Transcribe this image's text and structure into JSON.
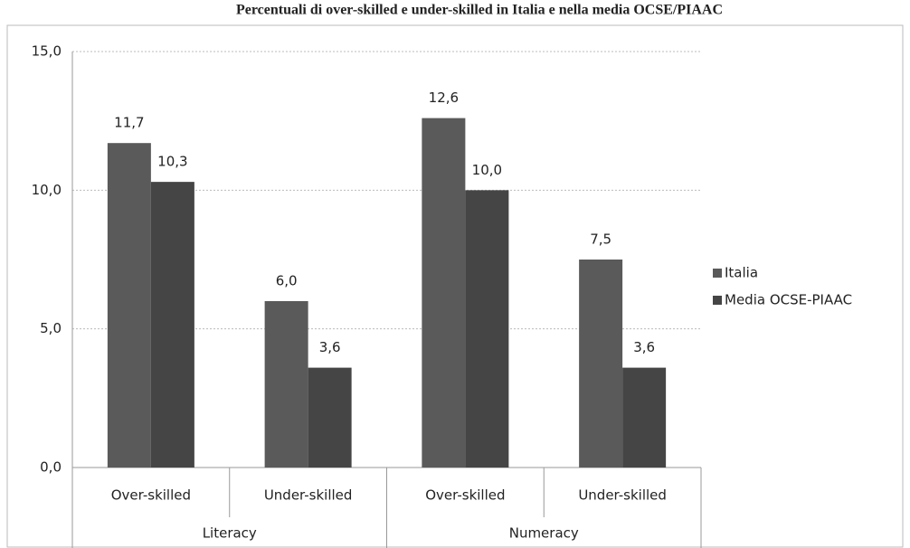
{
  "chart_data": {
    "type": "bar",
    "title": "Percentuali di over-skilled e under-skilled in Italia e nella media OCSE/PIAAC",
    "categories": [
      "Over-skilled",
      "Under-skilled",
      "Over-skilled",
      "Under-skilled"
    ],
    "groups": [
      "Literacy",
      "Numeracy"
    ],
    "series": [
      {
        "name": "Italia",
        "color": "#5a5a5a",
        "values": [
          11.7,
          6.0,
          12.6,
          7.5
        ],
        "value_labels": [
          "11,7",
          "6,0",
          "12,6",
          "7,5"
        ]
      },
      {
        "name": "Media OCSE-PIAAC",
        "color": "#454545",
        "values": [
          10.3,
          3.6,
          10.0,
          3.6
        ],
        "value_labels": [
          "10,3",
          "3,6",
          "10,0",
          "3,6"
        ]
      }
    ],
    "ylim": [
      0,
      15
    ],
    "yticks": [
      {
        "value": 0,
        "label": "0,0"
      },
      {
        "value": 5,
        "label": "5,0"
      },
      {
        "value": 10,
        "label": "10,0"
      },
      {
        "value": 15,
        "label": "15,0"
      }
    ],
    "grid": true,
    "legend": "right"
  }
}
